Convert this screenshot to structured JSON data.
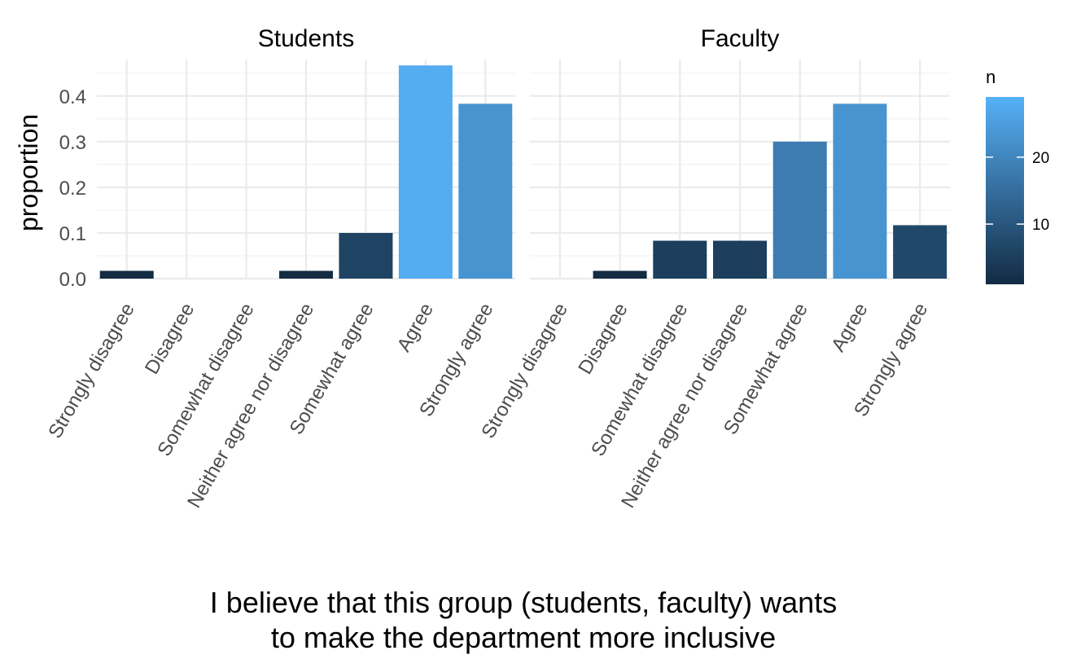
{
  "chart_data": {
    "type": "bar",
    "facets": [
      {
        "title": "Students",
        "categories": [
          "Strongly disagree",
          "Disagree",
          "Somewhat disagree",
          "Neither agree nor disagree",
          "Somewhat agree",
          "Agree",
          "Strongly agree"
        ],
        "proportion": [
          0.017,
          0,
          0,
          0.017,
          0.1,
          0.467,
          0.383
        ],
        "n": [
          1,
          0,
          0,
          1,
          6,
          28,
          23
        ]
      },
      {
        "title": "Faculty",
        "categories": [
          "Strongly disagree",
          "Disagree",
          "Somewhat disagree",
          "Neither agree nor disagree",
          "Somewhat agree",
          "Agree",
          "Strongly agree"
        ],
        "proportion": [
          0,
          0.017,
          0.083,
          0.083,
          0.3,
          0.383,
          0.117
        ],
        "n": [
          0,
          1,
          5,
          5,
          18,
          23,
          7
        ]
      }
    ],
    "ylabel": "proportion",
    "xlabel_lines": [
      "I believe that this group (students, faculty) wants",
      "to make the department more inclusive"
    ],
    "ylim": [
      0,
      0.48
    ],
    "y_ticks": [
      "0.0",
      "0.1",
      "0.2",
      "0.3",
      "0.4"
    ],
    "y_tick_values": [
      0,
      0.1,
      0.2,
      0.3,
      0.4
    ],
    "legend": {
      "title": "n",
      "position": "right",
      "ticks": [
        "10",
        "20"
      ],
      "tick_values": [
        10,
        20
      ],
      "range": [
        1,
        29
      ],
      "color_low": "#132b43",
      "color_high": "#56b1f7"
    },
    "grid": true
  }
}
